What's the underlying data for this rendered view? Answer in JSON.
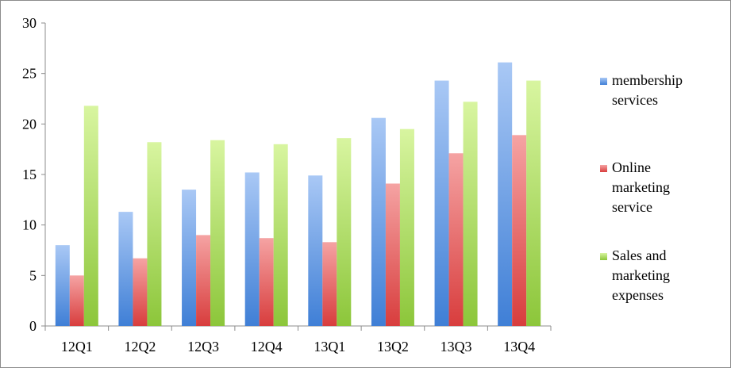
{
  "chart_data": {
    "type": "bar",
    "title": "",
    "xlabel": "",
    "ylabel": "",
    "categories": [
      "12Q1",
      "12Q2",
      "12Q3",
      "12Q4",
      "13Q1",
      "13Q2",
      "13Q3",
      "13Q4"
    ],
    "ylim": [
      0,
      30
    ],
    "yticks": [
      "0",
      "5",
      "10",
      "15",
      "20",
      "25",
      "30"
    ],
    "grid": false,
    "legend_position": "right",
    "series": [
      {
        "name": "membership services",
        "legend_lines": [
          "membership",
          "services"
        ],
        "color": "#4f81bd",
        "values": [
          8.0,
          11.3,
          13.5,
          15.2,
          14.9,
          20.6,
          24.3,
          26.1
        ]
      },
      {
        "name": "Online marketing service",
        "legend_lines": [
          "Online",
          "marketing",
          "service"
        ],
        "color": "#e05555",
        "values": [
          5.0,
          6.7,
          9.0,
          8.7,
          8.3,
          14.1,
          17.1,
          18.9
        ]
      },
      {
        "name": "Sales and marketing expenses",
        "legend_lines": [
          "Sales and",
          "marketing",
          "expenses"
        ],
        "color": "#9bd13c",
        "values": [
          21.8,
          18.2,
          18.4,
          18.0,
          18.6,
          19.5,
          22.2,
          24.3
        ]
      }
    ]
  }
}
